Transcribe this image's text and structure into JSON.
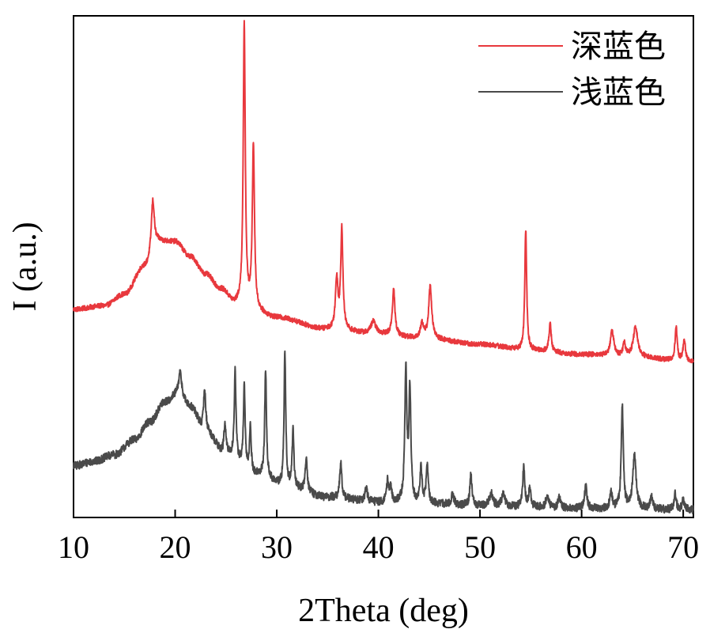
{
  "chart_data": {
    "type": "line",
    "title": "",
    "xlabel": "2Theta (deg)",
    "ylabel": "I (a.u.)",
    "xlim": [
      10,
      71
    ],
    "ylim": [
      0,
      100
    ],
    "xticks": [
      10,
      20,
      30,
      40,
      50,
      60,
      70
    ],
    "yticks": [],
    "grid": false,
    "legend_position": "top-right",
    "series": [
      {
        "name": "深蓝色",
        "color": "#e8383d",
        "baseline": [
          [
            10,
            41.5
          ],
          [
            13,
            42.2
          ],
          [
            15,
            44.5
          ],
          [
            17,
            50
          ],
          [
            18.5,
            55
          ],
          [
            20,
            55
          ],
          [
            21.5,
            52
          ],
          [
            23,
            48.5
          ],
          [
            24.5,
            45.5
          ],
          [
            26,
            42.5
          ],
          [
            28,
            40.8
          ],
          [
            30,
            39.8
          ],
          [
            35,
            37.5
          ],
          [
            40,
            36.5
          ],
          [
            45,
            35.5
          ],
          [
            50,
            34.5
          ],
          [
            55,
            33.3
          ],
          [
            60,
            32.5
          ],
          [
            65,
            32
          ],
          [
            71,
            31
          ]
        ],
        "peaks": [
          [
            17.8,
            10.5,
            0.18
          ],
          [
            26.8,
            56,
            0.12
          ],
          [
            27.7,
            33,
            0.13
          ],
          [
            35.9,
            10,
            0.15
          ],
          [
            36.4,
            20,
            0.13
          ],
          [
            39.5,
            2.5,
            0.3
          ],
          [
            41.5,
            9,
            0.15
          ],
          [
            44.3,
            3,
            0.2
          ],
          [
            45.1,
            10.5,
            0.18
          ],
          [
            54.5,
            24,
            0.11
          ],
          [
            56.9,
            5.5,
            0.13
          ],
          [
            63,
            5,
            0.2
          ],
          [
            64.2,
            2.5,
            0.15
          ],
          [
            65.3,
            6,
            0.25
          ],
          [
            69.3,
            6.8,
            0.12
          ],
          [
            70.1,
            4,
            0.15
          ]
        ],
        "noise": 0.5
      },
      {
        "name": "浅蓝色",
        "color": "#4a4a4a",
        "baseline": [
          [
            10,
            10.3
          ],
          [
            12,
            11.2
          ],
          [
            14,
            12.5
          ],
          [
            16,
            15.5
          ],
          [
            17.5,
            19
          ],
          [
            19,
            23
          ],
          [
            20.3,
            24.5
          ],
          [
            21.5,
            22
          ],
          [
            23,
            17
          ],
          [
            25,
            12.5
          ],
          [
            28,
            8.5
          ],
          [
            31,
            6
          ],
          [
            35,
            4
          ],
          [
            40,
            3
          ],
          [
            45,
            2.7
          ],
          [
            50,
            2.3
          ],
          [
            55,
            2
          ],
          [
            60,
            1.8
          ],
          [
            65,
            1.6
          ],
          [
            71,
            1.5
          ]
        ],
        "peaks": [
          [
            20.5,
            4.5,
            0.18
          ],
          [
            22.9,
            8.5,
            0.13
          ],
          [
            24.9,
            6,
            0.12
          ],
          [
            25.9,
            17.5,
            0.1
          ],
          [
            26.8,
            16,
            0.1
          ],
          [
            27.4,
            9,
            0.1
          ],
          [
            28.9,
            21.5,
            0.1
          ],
          [
            30.8,
            27,
            0.1
          ],
          [
            31.6,
            11.5,
            0.1
          ],
          [
            32.9,
            7,
            0.12
          ],
          [
            36.3,
            7,
            0.12
          ],
          [
            38.8,
            2.5,
            0.15
          ],
          [
            40.9,
            4,
            0.12
          ],
          [
            41.2,
            3,
            0.12
          ],
          [
            42.7,
            26,
            0.12
          ],
          [
            43.1,
            22,
            0.12
          ],
          [
            44.2,
            7,
            0.12
          ],
          [
            44.8,
            7.5,
            0.12
          ],
          [
            47.3,
            2,
            0.15
          ],
          [
            49.1,
            6,
            0.12
          ],
          [
            51.1,
            2.5,
            0.2
          ],
          [
            52.3,
            2.5,
            0.2
          ],
          [
            54.3,
            8,
            0.12
          ],
          [
            54.9,
            4,
            0.12
          ],
          [
            56.6,
            2.5,
            0.15
          ],
          [
            57.8,
            2,
            0.15
          ],
          [
            60.4,
            4.5,
            0.13
          ],
          [
            62.9,
            3,
            0.15
          ],
          [
            64,
            20.5,
            0.12
          ],
          [
            65.2,
            10.5,
            0.2
          ],
          [
            66.9,
            2.5,
            0.15
          ],
          [
            69.2,
            3.5,
            0.12
          ],
          [
            70,
            2,
            0.12
          ]
        ],
        "noise": 0.8
      }
    ]
  }
}
